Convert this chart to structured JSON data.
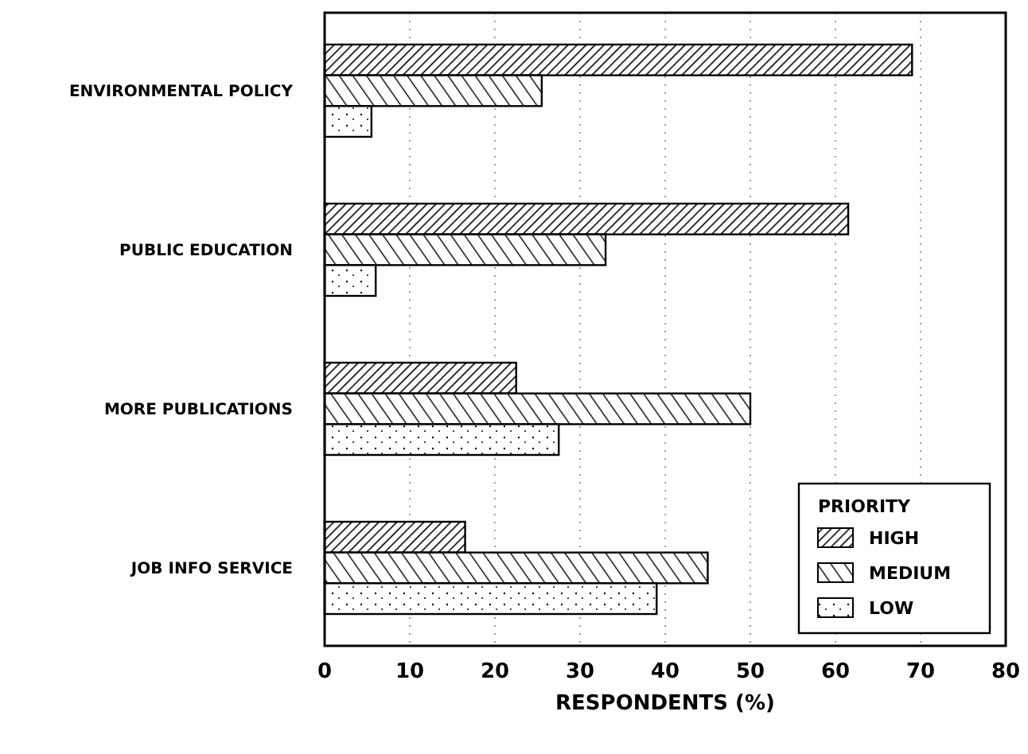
{
  "chart_data": {
    "type": "bar",
    "orientation": "horizontal",
    "xlabel": "RESPONDENTS (%)",
    "legend_title": "PRIORITY",
    "categories": [
      "ENVIRONMENTAL POLICY",
      "PUBLIC EDUCATION",
      "MORE PUBLICATIONS",
      "JOB INFO SERVICE"
    ],
    "series": [
      {
        "name": "HIGH",
        "color": "#000000",
        "values": [
          69,
          61.5,
          22.5,
          16.5
        ]
      },
      {
        "name": "MEDIUM",
        "color": "#000000",
        "values": [
          25.5,
          33,
          50,
          45
        ]
      },
      {
        "name": "LOW",
        "color": "#000000",
        "values": [
          5.5,
          6,
          27.5,
          39
        ]
      }
    ],
    "xlim": [
      0,
      80
    ],
    "xticks": [
      0,
      10,
      20,
      30,
      40,
      50,
      60,
      70,
      80
    ],
    "grid": "x",
    "legend": "bottom right"
  }
}
